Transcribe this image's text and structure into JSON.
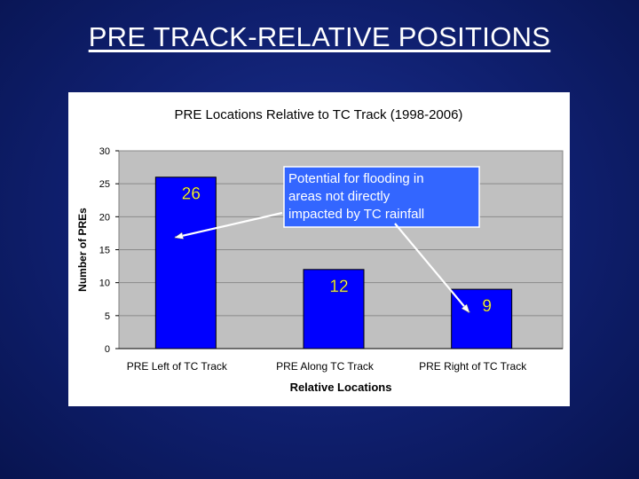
{
  "slide": {
    "title": "PRE TRACK-RELATIVE POSITIONS"
  },
  "colors": {
    "background": "#0f1f6e",
    "bar": "#0000ff",
    "plot_area": "#c0c0c0",
    "data_label": "#ffff66",
    "callout_bg": "#3366ff"
  },
  "chart_data": {
    "type": "bar",
    "title": "PRE Locations Relative to TC Track (1998-2006)",
    "xlabel": "Relative Locations",
    "ylabel": "Number of PREs",
    "categories": [
      "PRE Left of TC Track",
      "PRE Along TC Track",
      "PRE Right of TC Track"
    ],
    "values": [
      26,
      12,
      9
    ],
    "ylim": [
      0,
      30
    ],
    "yticks": [
      0,
      5,
      10,
      15,
      20,
      25,
      30
    ],
    "grid": true,
    "legend": "none",
    "annotation": {
      "lines": [
        "Potential for flooding in",
        "areas not directly",
        "impacted by TC rainfall"
      ],
      "points_to": [
        "PRE Left of TC Track",
        "PRE Right of TC Track"
      ]
    }
  }
}
